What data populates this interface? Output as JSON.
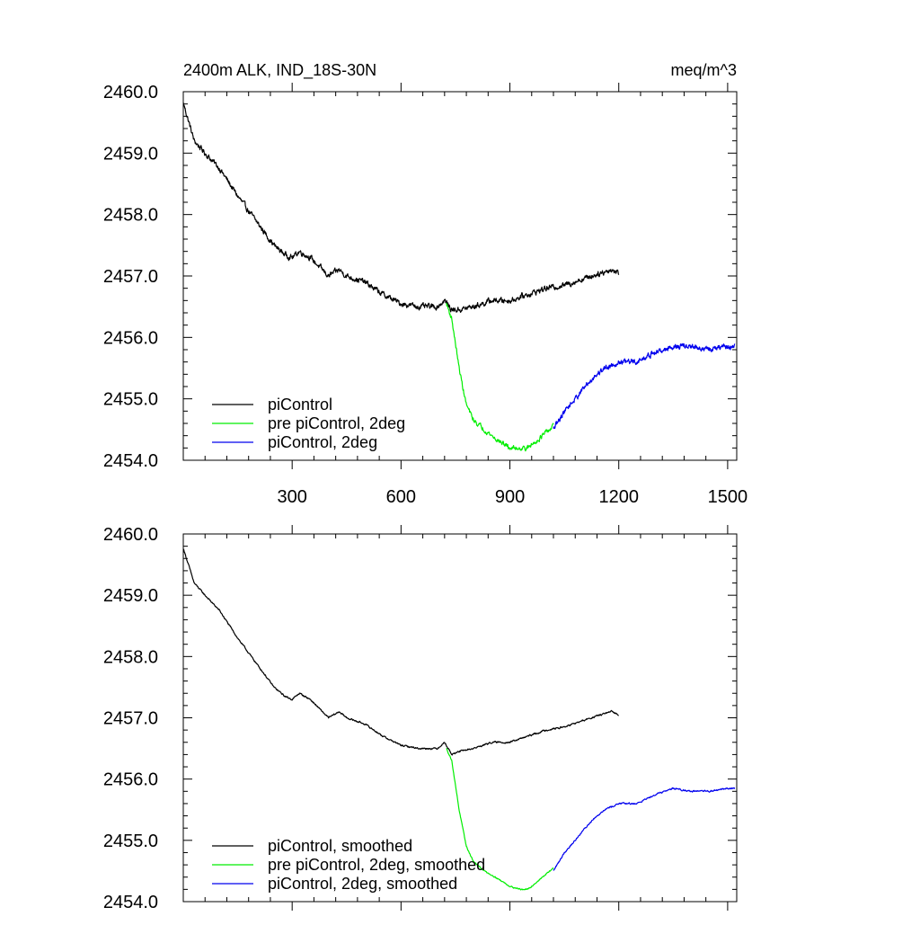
{
  "title_left": "2400m ALK, IND_18S-30N",
  "title_right": "meq/m^3",
  "colors": {
    "piControl": "#000000",
    "pre": "#00ee00",
    "twodeg": "#0000ee"
  },
  "chart_data": [
    {
      "type": "line",
      "panel": "top",
      "xlim": [
        0,
        1525
      ],
      "ylim": [
        2454.0,
        2460.0
      ],
      "xticks": [
        300,
        600,
        900,
        1200,
        1500
      ],
      "xtick_labels": [
        "300",
        "600",
        "900",
        "1200",
        "1500"
      ],
      "yticks": [
        2454.0,
        2455.0,
        2456.0,
        2457.0,
        2458.0,
        2459.0,
        2460.0
      ],
      "ytick_labels": [
        "2454.0",
        "2455.0",
        "2456.0",
        "2457.0",
        "2458.0",
        "2459.0",
        "2460.0"
      ],
      "series": [
        {
          "name": "piControl",
          "color_key": "piControl",
          "noise": 0.035,
          "x": [
            1,
            30,
            60,
            100,
            150,
            200,
            250,
            280,
            300,
            320,
            350,
            400,
            430,
            450,
            500,
            550,
            600,
            650,
            700,
            720,
            740,
            760,
            800,
            850,
            900,
            950,
            1000,
            1050,
            1100,
            1150,
            1180,
            1200
          ],
          "y": [
            2459.8,
            2459.2,
            2459.0,
            2458.75,
            2458.3,
            2457.9,
            2457.5,
            2457.35,
            2457.3,
            2457.4,
            2457.3,
            2457.0,
            2457.1,
            2457.0,
            2456.9,
            2456.7,
            2456.55,
            2456.5,
            2456.5,
            2456.6,
            2456.45,
            2456.45,
            2456.5,
            2456.6,
            2456.6,
            2456.7,
            2456.8,
            2456.85,
            2456.95,
            2457.05,
            2457.1,
            2457.05
          ]
        },
        {
          "name": "pre piControl, 2deg",
          "color_key": "pre",
          "noise": 0.03,
          "x": [
            725,
            740,
            760,
            780,
            800,
            830,
            860,
            900,
            930,
            950,
            970,
            1000,
            1020
          ],
          "y": [
            2456.55,
            2456.3,
            2455.5,
            2454.9,
            2454.65,
            2454.5,
            2454.35,
            2454.2,
            2454.2,
            2454.2,
            2454.3,
            2454.45,
            2454.55
          ]
        },
        {
          "name": "piControl, 2deg",
          "color_key": "twodeg",
          "noise": 0.035,
          "x": [
            1020,
            1050,
            1080,
            1100,
            1130,
            1160,
            1200,
            1250,
            1300,
            1350,
            1400,
            1450,
            1500,
            1520
          ],
          "y": [
            2454.5,
            2454.8,
            2455.0,
            2455.15,
            2455.35,
            2455.5,
            2455.6,
            2455.6,
            2455.75,
            2455.85,
            2455.85,
            2455.8,
            2455.85,
            2455.85
          ]
        }
      ],
      "legend": {
        "position": "bottom-left",
        "entries": [
          {
            "label": "piControl",
            "color_key": "piControl"
          },
          {
            "label": "pre piControl, 2deg",
            "color_key": "pre"
          },
          {
            "label": "piControl, 2deg",
            "color_key": "twodeg"
          }
        ]
      }
    },
    {
      "type": "line",
      "panel": "bottom",
      "xlim": [
        0,
        1525
      ],
      "ylim": [
        2454.0,
        2460.0
      ],
      "xticks": [
        300,
        600,
        900,
        1200,
        1500
      ],
      "xtick_labels": [],
      "yticks": [
        2454.0,
        2455.0,
        2456.0,
        2457.0,
        2458.0,
        2459.0,
        2460.0
      ],
      "ytick_labels": [
        "2454.0",
        "2455.0",
        "2456.0",
        "2457.0",
        "2458.0",
        "2459.0",
        "2460.0"
      ],
      "series": [
        {
          "name": "piControl, smoothed",
          "color_key": "piControl",
          "noise": 0.01,
          "x": [
            1,
            30,
            60,
            100,
            150,
            200,
            250,
            280,
            300,
            320,
            350,
            400,
            430,
            450,
            500,
            550,
            600,
            650,
            700,
            720,
            740,
            760,
            800,
            850,
            900,
            950,
            1000,
            1050,
            1100,
            1150,
            1180,
            1200
          ],
          "y": [
            2459.75,
            2459.2,
            2459.0,
            2458.75,
            2458.3,
            2457.9,
            2457.5,
            2457.35,
            2457.3,
            2457.4,
            2457.3,
            2457.0,
            2457.1,
            2457.0,
            2456.9,
            2456.7,
            2456.55,
            2456.5,
            2456.5,
            2456.6,
            2456.4,
            2456.45,
            2456.5,
            2456.6,
            2456.6,
            2456.7,
            2456.8,
            2456.85,
            2456.95,
            2457.05,
            2457.1,
            2457.05
          ]
        },
        {
          "name": "pre piControl, 2deg, smoothed",
          "color_key": "pre",
          "noise": 0.008,
          "x": [
            725,
            740,
            760,
            780,
            800,
            830,
            860,
            900,
            930,
            950,
            970,
            1000,
            1020
          ],
          "y": [
            2456.5,
            2456.3,
            2455.5,
            2454.9,
            2454.65,
            2454.5,
            2454.4,
            2454.25,
            2454.2,
            2454.2,
            2454.3,
            2454.45,
            2454.55
          ]
        },
        {
          "name": "piControl, 2deg, smoothed",
          "color_key": "twodeg",
          "noise": 0.01,
          "x": [
            1020,
            1050,
            1080,
            1100,
            1130,
            1160,
            1200,
            1250,
            1300,
            1350,
            1400,
            1450,
            1500,
            1520
          ],
          "y": [
            2454.5,
            2454.8,
            2455.0,
            2455.15,
            2455.35,
            2455.5,
            2455.6,
            2455.6,
            2455.75,
            2455.85,
            2455.8,
            2455.8,
            2455.85,
            2455.85
          ]
        }
      ],
      "legend": {
        "position": "bottom-left",
        "entries": [
          {
            "label": "piControl, smoothed",
            "color_key": "piControl"
          },
          {
            "label": "pre piControl, 2deg, smoothed",
            "color_key": "pre"
          },
          {
            "label": "piControl, 2deg, smoothed",
            "color_key": "twodeg"
          }
        ]
      }
    }
  ]
}
